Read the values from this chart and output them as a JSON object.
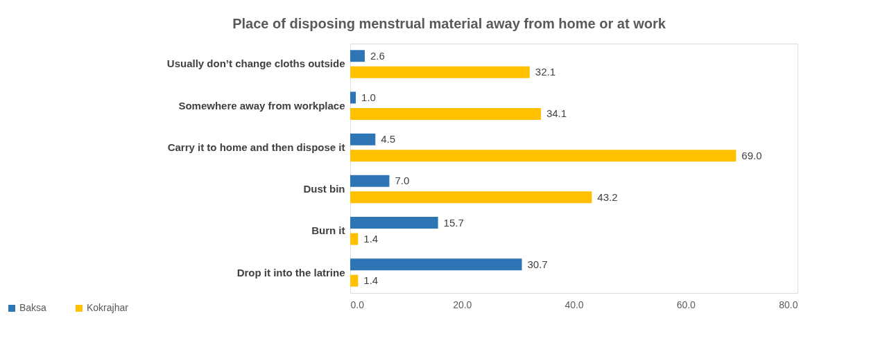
{
  "chart_data": {
    "type": "bar",
    "orientation": "horizontal",
    "title": "Place of disposing menstrual material away from home or at work",
    "categories": [
      "Usually don’t change cloths outside",
      "Somewhere away from workplace",
      "Carry it to home and then dispose it",
      "Dust bin",
      "Burn it",
      "Drop it into the latrine"
    ],
    "series": [
      {
        "name": "Baksa",
        "color": "#2e75b6",
        "values": [
          2.6,
          1.0,
          4.5,
          7.0,
          15.7,
          30.7
        ],
        "value_labels": [
          "2.6",
          "1.0",
          "4.5",
          "7.0",
          "15.7",
          "30.7"
        ]
      },
      {
        "name": "Kokrajhar",
        "color": "#ffc000",
        "values": [
          32.1,
          34.1,
          69.0,
          43.2,
          1.4,
          1.4
        ],
        "value_labels": [
          "32.1",
          "34.1",
          "69.0",
          "43.2",
          "1.4",
          "1.4"
        ]
      }
    ],
    "xlim": [
      0,
      80
    ],
    "xticks": [
      {
        "value": 0,
        "label": "0.0"
      },
      {
        "value": 20,
        "label": "20.0"
      },
      {
        "value": 40,
        "label": "40.0"
      },
      {
        "value": 60,
        "label": "60.0"
      },
      {
        "value": 80,
        "label": "80.0"
      }
    ],
    "grid": false,
    "legend": "bottom left"
  }
}
